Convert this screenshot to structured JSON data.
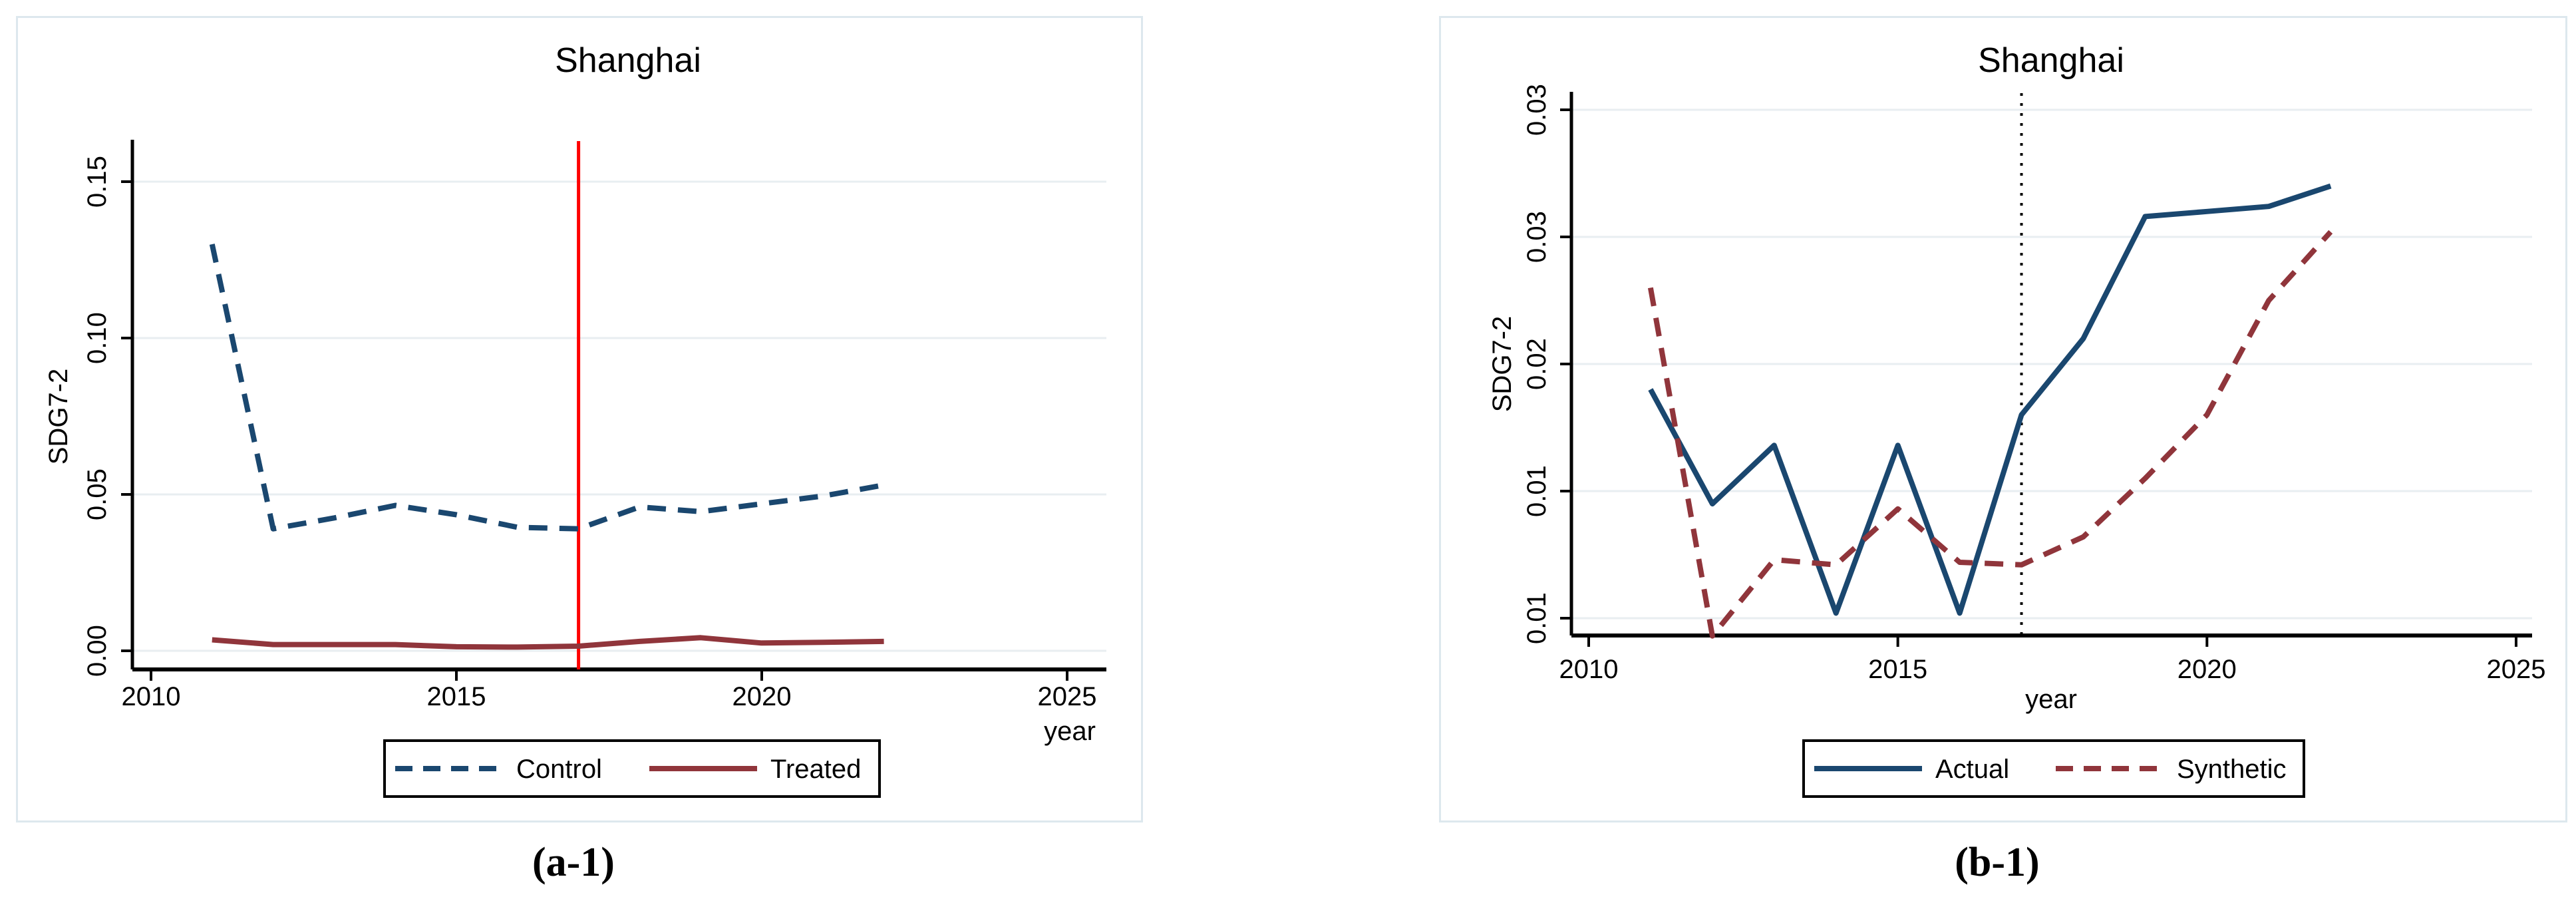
{
  "figure": {
    "captions": {
      "a1": "(a-1)",
      "b1": "(b-1)"
    }
  },
  "colors": {
    "navy": "#1a476f",
    "maroon": "#90353b",
    "red": "#ff0000",
    "black": "#000000",
    "title_navy": "#233a5e",
    "gridline": "#e8eef1"
  },
  "chart_data": [
    {
      "type": "line",
      "title": "Shanghai",
      "xlabel": "year",
      "ylabel": "SDG7-2",
      "x": [
        2011,
        2012,
        2013,
        2014,
        2015,
        2016,
        2017,
        2018,
        2019,
        2020,
        2021,
        2022
      ],
      "xlim": [
        2009.7,
        2025.7
      ],
      "ylim": [
        -0.006,
        0.163
      ],
      "x_ticks": [
        2010,
        2015,
        2020,
        2025
      ],
      "x_tick_labels": [
        "2010",
        "2015",
        "2020",
        "2025"
      ],
      "y_ticks": [
        0.0,
        0.05,
        0.1,
        0.15
      ],
      "y_tick_labels": [
        "0.00",
        "0.05",
        "0.10",
        "0.15"
      ],
      "grid": true,
      "legend_position": "bottom",
      "vline": {
        "x": 2017,
        "style": "solid",
        "color": "red",
        "y_top_value": 0.1565
      },
      "series": [
        {
          "name": "Control",
          "style": "dashed",
          "color": "navy",
          "values": [
            0.13,
            0.039,
            0.0425,
            0.0465,
            0.0435,
            0.0395,
            0.039,
            0.046,
            0.0445,
            0.047,
            0.0495,
            0.053
          ]
        },
        {
          "name": "Treated",
          "style": "solid",
          "color": "maroon",
          "values": [
            0.0035,
            0.002,
            0.002,
            0.002,
            0.0013,
            0.0012,
            0.0015,
            0.003,
            0.0042,
            0.0025,
            0.0027,
            0.003
          ]
        }
      ]
    },
    {
      "type": "line",
      "title": "Shanghai",
      "xlabel": "year",
      "ylabel": "SDG7-2",
      "x": [
        2011,
        2012,
        2013,
        2014,
        2015,
        2016,
        2017,
        2018,
        2019,
        2020,
        2021,
        2022
      ],
      "xlim": [
        2009.7,
        2025.8
      ],
      "ylim": [
        0.0093,
        0.0306
      ],
      "x_ticks": [
        2010,
        2015,
        2020,
        2025
      ],
      "x_tick_labels": [
        "2010",
        "2015",
        "2020",
        "2025"
      ],
      "y_ticks": [
        0.01,
        0.015,
        0.02,
        0.025,
        0.03
      ],
      "y_tick_labels": [
        "0.01",
        "0.01",
        "0.02",
        "0.03",
        "0.03"
      ],
      "grid": true,
      "legend_position": "bottom",
      "vline": {
        "x": 2017,
        "style": "dotted",
        "color": "black",
        "y_top_value": 0.0306
      },
      "series": [
        {
          "name": "Actual",
          "style": "solid",
          "color": "navy",
          "values": [
            0.019,
            0.0145,
            0.0168,
            0.0102,
            0.0168,
            0.0102,
            0.018,
            0.021,
            0.0258,
            0.026,
            0.0262,
            0.027
          ]
        },
        {
          "name": "Synthetic",
          "style": "dashed",
          "color": "maroon",
          "values": [
            0.023,
            0.0093,
            0.0123,
            0.0121,
            0.0143,
            0.0122,
            0.0121,
            0.0132,
            0.0155,
            0.018,
            0.0225,
            0.0252
          ]
        }
      ]
    }
  ]
}
